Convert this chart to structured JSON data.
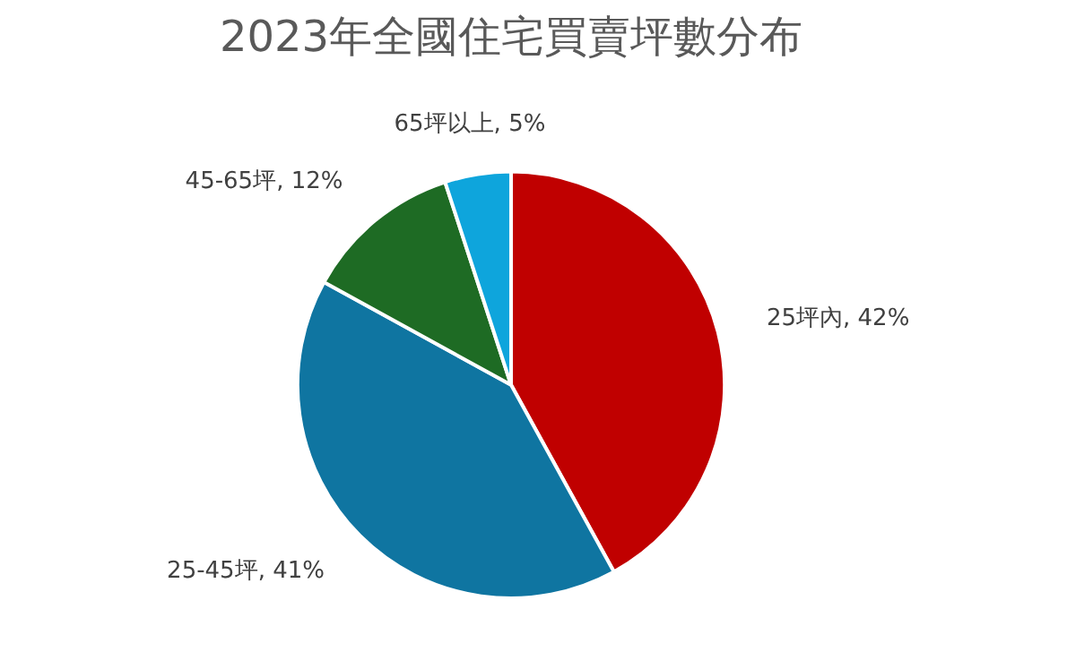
{
  "chart_data": {
    "type": "pie",
    "title": "2023年全國住宅買賣坪數分布",
    "categories": [
      "25坪內",
      "25-45坪",
      "45-65坪",
      "65坪以上"
    ],
    "values": [
      42,
      41,
      12,
      5
    ],
    "colors": [
      "#c00000",
      "#0f75a1",
      "#1e6b24",
      "#0ea5dc"
    ],
    "value_labels": [
      "42%",
      "41%",
      "12%",
      "5%"
    ],
    "legend": false
  }
}
